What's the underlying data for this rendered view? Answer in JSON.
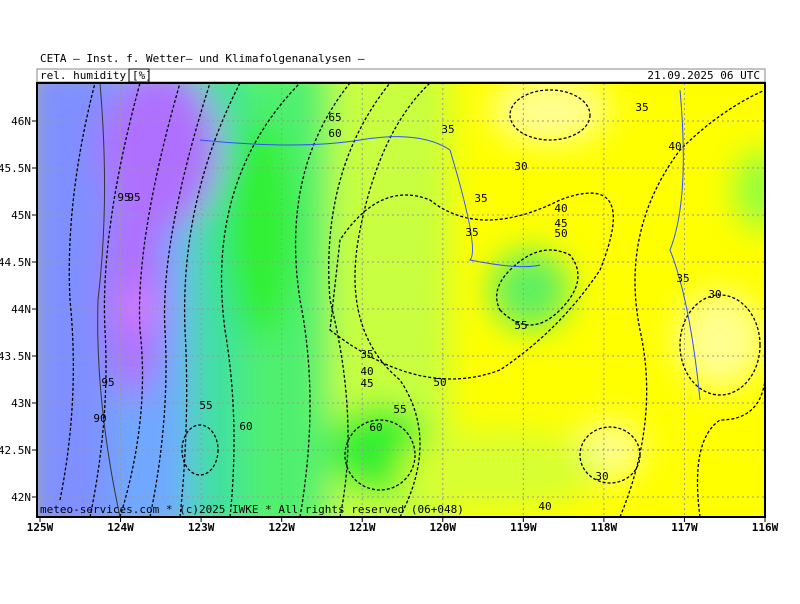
{
  "header": {
    "title": "CETA – Inst. f. Wetter– und Klimafolgenanalysen –",
    "variable": "rel. humidity",
    "unit": "[%]",
    "datetime": "21.09.2025 06 UTC"
  },
  "map": {
    "lon_ticks": [
      "125W",
      "124W",
      "123W",
      "122W",
      "121W",
      "120W",
      "119W",
      "118W",
      "117W",
      "116W"
    ],
    "lat_ticks": [
      "46N",
      "45.5N",
      "45N",
      "44.5N",
      "44N",
      "43.5N",
      "43N",
      "42.5N",
      "42N"
    ],
    "contour_labels": [
      "65",
      "60",
      "35",
      "35",
      "40",
      "30",
      "35",
      "40",
      "45",
      "50",
      "35",
      "95",
      "95",
      "35",
      "30",
      "55",
      "35",
      "40",
      "45",
      "50",
      "95",
      "90",
      "55",
      "60",
      "55",
      "60",
      "30",
      "40"
    ],
    "copyright": "meteo-services.com * (c)2025 IWKE * All rights reserved (06+048)"
  }
}
